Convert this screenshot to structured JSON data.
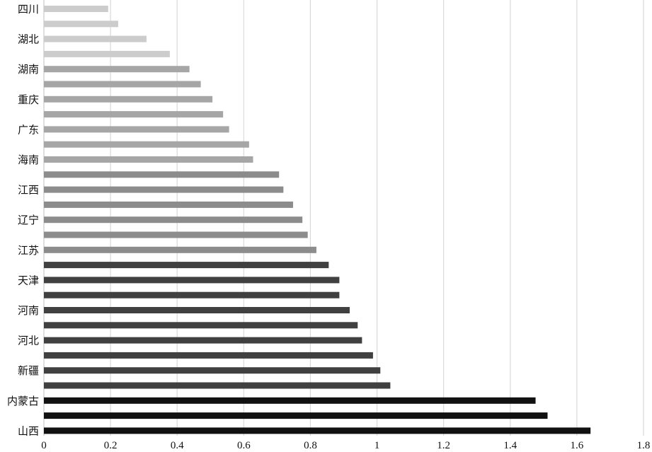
{
  "chart_data": {
    "type": "bar",
    "orientation": "horizontal",
    "title": "",
    "xlabel": "",
    "ylabel": "",
    "xlim": [
      0,
      1.8
    ],
    "x_ticks": [
      0,
      0.2,
      0.4,
      0.6,
      0.8,
      1,
      1.2,
      1.4,
      1.6,
      1.8
    ],
    "x_tick_labels": [
      "0",
      "0.2",
      "0.4",
      "0.6",
      "0.8",
      "1",
      "1.2",
      "1.4",
      "1.6",
      "1.8"
    ],
    "grid": "vertical",
    "legend": "none",
    "categories": [
      "四川",
      "",
      "湖北",
      "",
      "湖南",
      "",
      "重庆",
      "",
      "广东",
      "",
      "海南",
      "",
      "江西",
      "",
      "辽宁",
      "",
      "江苏",
      "",
      "天津",
      "",
      "河南",
      "",
      "河北",
      "",
      "新疆",
      "",
      "内蒙古",
      "",
      "山西"
    ],
    "values": [
      0.193,
      0.223,
      0.308,
      0.378,
      0.437,
      0.471,
      0.506,
      0.538,
      0.556,
      0.616,
      0.628,
      0.706,
      0.719,
      0.748,
      0.776,
      0.792,
      0.818,
      0.855,
      0.887,
      0.887,
      0.918,
      0.942,
      0.955,
      0.988,
      1.01,
      1.04,
      1.476,
      1.512,
      1.641
    ],
    "bar_colors": [
      "#cccccc",
      "#cccccc",
      "#cccccc",
      "#cccccc",
      "#a6a6a6",
      "#a6a6a6",
      "#a6a6a6",
      "#a6a6a6",
      "#a6a6a6",
      "#a6a6a6",
      "#a6a6a6",
      "#8c8c8c",
      "#8c8c8c",
      "#8c8c8c",
      "#8c8c8c",
      "#8c8c8c",
      "#8c8c8c",
      "#404040",
      "#404040",
      "#404040",
      "#404040",
      "#404040",
      "#404040",
      "#404040",
      "#404040",
      "#404040",
      "#111111",
      "#111111",
      "#111111"
    ]
  }
}
